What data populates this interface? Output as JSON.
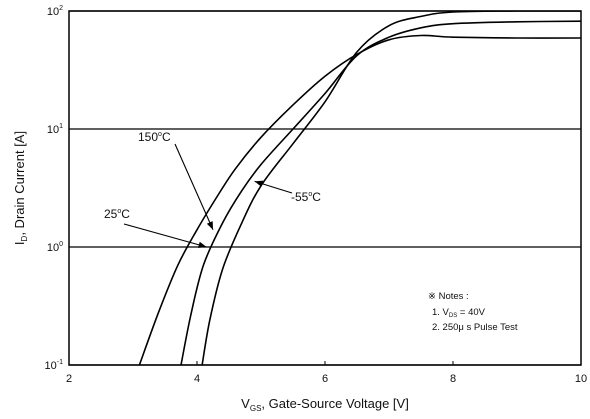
{
  "chart_data": {
    "type": "line",
    "x_scale": "linear",
    "y_scale": "log",
    "xlim": [
      2,
      10
    ],
    "ylim": [
      0.1,
      100
    ],
    "grid": "horizontal at decades",
    "x_ticks": [
      "2",
      "4",
      "6",
      "8",
      "10"
    ],
    "y_ticks": [
      {
        "base": "10",
        "exp": "-1"
      },
      {
        "base": "10",
        "exp": "0"
      },
      {
        "base": "10",
        "exp": "1"
      },
      {
        "base": "10",
        "exp": "2"
      }
    ],
    "xlabel": {
      "main": "V",
      "sub": "GS",
      "rest": ", Gate-Source Voltage [V]"
    },
    "ylabel": {
      "main": "I",
      "sub": "D",
      "rest": ", Drain Current [A]"
    },
    "series": [
      {
        "name": "150°C",
        "x": [
          3.1,
          3.4,
          3.7,
          4.0,
          4.3,
          4.6,
          5.0,
          5.5,
          6.0,
          6.5,
          7.0,
          7.5,
          8.0,
          9.0,
          10.0
        ],
        "y": [
          0.1,
          0.28,
          0.7,
          1.4,
          2.6,
          4.6,
          8.5,
          16,
          28,
          43,
          57,
          62,
          60,
          59,
          59
        ]
      },
      {
        "name": "25°C",
        "x": [
          3.75,
          3.9,
          4.1,
          4.4,
          4.7,
          5.0,
          5.5,
          6.0,
          6.5,
          7.0,
          7.5,
          8.0,
          9.0,
          10.0
        ],
        "y": [
          0.1,
          0.26,
          0.7,
          1.6,
          3.0,
          5.0,
          10,
          20,
          42,
          60,
          72,
          78,
          81,
          82
        ]
      },
      {
        "name": "-55°C",
        "x": [
          4.08,
          4.2,
          4.4,
          4.7,
          5.0,
          5.5,
          6.0,
          6.5,
          7.0,
          7.5,
          8.0,
          9.0,
          10.0
        ],
        "y": [
          0.1,
          0.24,
          0.65,
          1.6,
          3.3,
          7.5,
          17,
          45,
          75,
          90,
          98,
          100,
          100
        ]
      }
    ],
    "curve_labels": [
      {
        "series": "150°C",
        "text": "150",
        "unit": "C",
        "at": [
          4.25,
          1.4
        ]
      },
      {
        "series": "-55°C",
        "text": "-55",
        "unit": "C",
        "at": [
          4.9,
          3.6
        ]
      },
      {
        "series": "25°C",
        "text": "25",
        "unit": "C",
        "at": [
          4.15,
          1.0
        ]
      }
    ],
    "notes": {
      "heading": "※ Notes :",
      "line1_prefix": "1. V",
      "line1_sub": "DS",
      "line1_rest": " = 40V",
      "line2": "2. 250μ s Pulse Test"
    }
  }
}
